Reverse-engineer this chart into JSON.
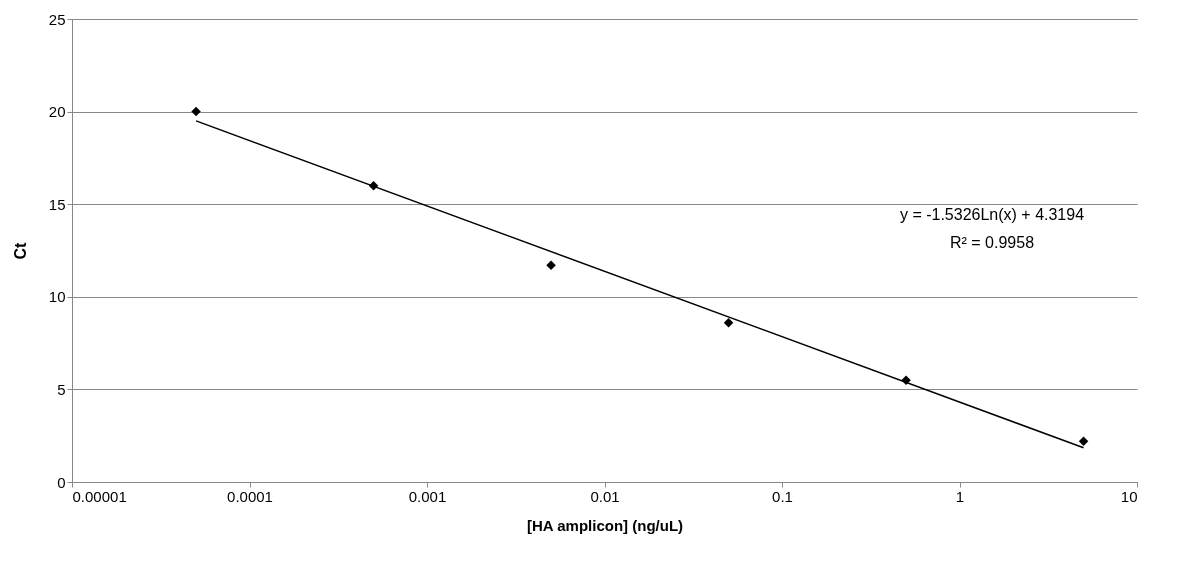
{
  "chart_data": {
    "type": "scatter",
    "xlabel": "[HA amplicon] (ng/uL)",
    "ylabel": "Ct",
    "log": "x",
    "xlim": [
      1e-05,
      10
    ],
    "xticks": [
      {
        "value": 1e-05,
        "label": "0.00001"
      },
      0.0001,
      0.001,
      0.01,
      0.1,
      1,
      10
    ],
    "ylim": [
      0,
      25
    ],
    "yticks": [
      0,
      5,
      10,
      15,
      20,
      25
    ],
    "grid": "y",
    "marker": "diamond",
    "line_style": "solid",
    "series": [
      {
        "color": "#000000",
        "x": [
          5e-05,
          0.0005,
          0.005,
          0.05,
          0.5,
          5
        ],
        "values": [
          20,
          16,
          11.7,
          8.6,
          5.5,
          2.2
        ]
      },
      {
        "type": "line",
        "marker": "none",
        "color": "#000000",
        "x": [
          5e-05,
          5
        ],
        "values": [
          19.5,
          1.85
        ]
      }
    ],
    "annotations": [
      "y = -1.5326Ln(x) + 4.3194",
      "R² = 0.9958"
    ]
  }
}
